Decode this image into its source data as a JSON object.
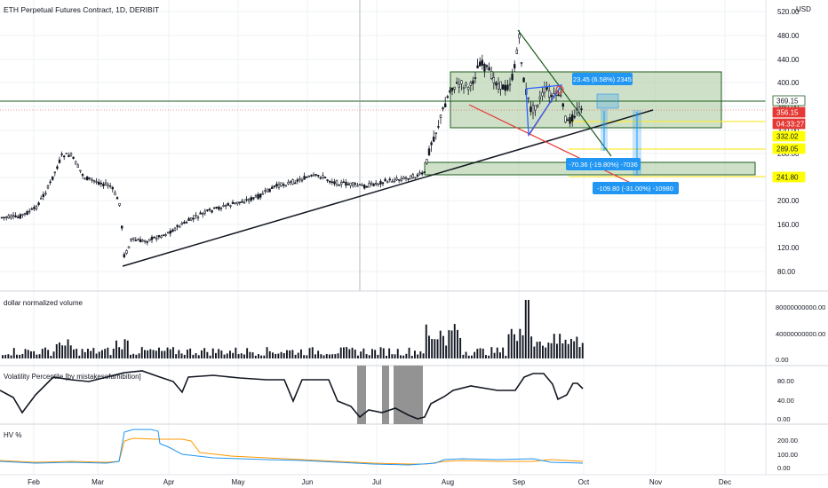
{
  "header": {
    "title": "ETH Perpetual Futures Contract, 1D, DERIBIT"
  },
  "currency": "USD",
  "price_axis": {
    "ticks": [
      "520.00",
      "480.00",
      "440.00",
      "400.00",
      "360.00",
      "320.00",
      "280.00",
      "240.00",
      "200.00",
      "160.00",
      "120.00",
      "80.00"
    ]
  },
  "price_tags": [
    {
      "label": "369.15",
      "bg": "#ffffff",
      "fg": "#131722",
      "border": "#1e5b1e"
    },
    {
      "label": "356.15",
      "bg": "#e53935",
      "fg": "#ffffff",
      "border": "#e53935"
    },
    {
      "label": "04:33:27",
      "bg": "#e53935",
      "fg": "#ffffff",
      "border": "#e53935"
    },
    {
      "label": "332.02",
      "bg": "#ffff00",
      "fg": "#131722",
      "border": "#ffff00"
    },
    {
      "label": "289.05",
      "bg": "#ffff00",
      "fg": "#131722",
      "border": "#ffff00"
    },
    {
      "label": "241.80",
      "bg": "#ffff00",
      "fg": "#131722",
      "border": "#ffff00"
    }
  ],
  "annotations": [
    {
      "text": "23.45 (6.58%) 2345"
    },
    {
      "text": "-70.36 (-19.80%) -7036"
    },
    {
      "text": "-109.80 (-31.00%) -10980"
    }
  ],
  "volume": {
    "title": "dollar normalized volume",
    "ticks": [
      "80000000000.00",
      "40000000000.00",
      "0.00"
    ]
  },
  "volatility": {
    "title": "Volatility Percentile [by mistakesofamibition]",
    "ticks": [
      "80.00",
      "40.00",
      "0.00"
    ]
  },
  "hv": {
    "title": "HV %",
    "ticks": [
      "200.00",
      "100.00",
      "0.00"
    ]
  },
  "time_axis": {
    "labels": [
      "Feb",
      "Mar",
      "Apr",
      "May",
      "Jun",
      "Jul",
      "Aug",
      "Sep",
      "Oct",
      "Nov",
      "Dec"
    ]
  },
  "colors": {
    "up": "#ffffff",
    "down": "#131722",
    "grid": "#e9ebef",
    "accent_blue": "#2962ff",
    "label_blue": "#2196f3",
    "zone_fill": "#a5c99a",
    "zone_border": "#1e5b1e",
    "trend": "#131722",
    "red_line": "#e53935",
    "yellow_line": "#ffeb3b",
    "hv_orange": "#ff9800",
    "hv_blue": "#2196f3"
  }
}
